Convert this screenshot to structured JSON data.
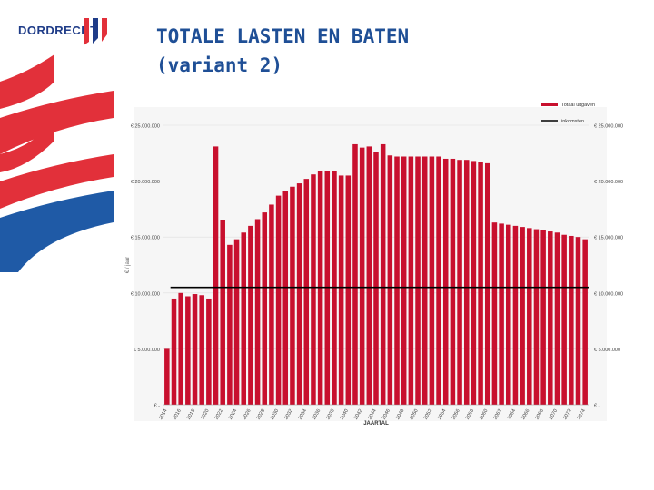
{
  "brand": {
    "name": "DORDRECHT",
    "primary_color": "#1f3c88",
    "accent_color": "#e2303a"
  },
  "slide": {
    "title_line1": "TOTALE LASTEN EN BATEN",
    "title_line2": "(variant 2)",
    "title_color": "#1f4f96"
  },
  "chart_data": {
    "type": "bar",
    "xlabel": "JAARTAL",
    "ylabel": "€ / jaar",
    "ylim": [
      0,
      25000000
    ],
    "y_ticks_left": [
      "€ 25.000.000",
      "€ 20.000.000",
      "€ 15.000.000",
      "€ 10.000.000",
      "€ 5.000.000",
      "€ -"
    ],
    "y_ticks_right": [
      "€ 25.000.000",
      "€ 20.000.000",
      "€ 15.000.000",
      "€ 10.000.000",
      "€ 5.000.000",
      "€ -"
    ],
    "x_ticks": [
      "2014",
      "2016",
      "2018",
      "2020",
      "2022",
      "2024",
      "2026",
      "2028",
      "2030",
      "2032",
      "2034",
      "2036",
      "2038",
      "2040",
      "2042",
      "2044",
      "2046",
      "2048",
      "2050",
      "2052",
      "2054",
      "2056",
      "2058",
      "2060",
      "2062",
      "2064",
      "2066",
      "2068",
      "2070",
      "2072",
      "2074"
    ],
    "legend": [
      {
        "name": "Totaal uitgaven",
        "color": "#c8102e"
      },
      {
        "name": "inkomsten",
        "color": "#000000"
      }
    ],
    "legend_position": "top-right",
    "grid": true,
    "series": [
      {
        "name": "Totaal uitgaven",
        "type": "bar",
        "color": "#c8102e",
        "years": [
          2014,
          2015,
          2016,
          2017,
          2018,
          2019,
          2020,
          2021,
          2022,
          2023,
          2024,
          2025,
          2026,
          2027,
          2028,
          2029,
          2030,
          2031,
          2032,
          2033,
          2034,
          2035,
          2036,
          2037,
          2038,
          2039,
          2040,
          2041,
          2042,
          2043,
          2044,
          2045,
          2046,
          2047,
          2048,
          2049,
          2050,
          2051,
          2052,
          2053,
          2054,
          2055,
          2056,
          2057,
          2058,
          2059,
          2060,
          2061,
          2062,
          2063,
          2064,
          2065,
          2066,
          2067,
          2068,
          2069,
          2070,
          2071,
          2072,
          2073,
          2074
        ],
        "values": [
          5000000,
          9500000,
          10000000,
          9700000,
          9900000,
          9800000,
          9500000,
          23100000,
          16500000,
          14300000,
          14800000,
          15400000,
          16000000,
          16600000,
          17200000,
          17900000,
          18700000,
          19100000,
          19500000,
          19800000,
          20200000,
          20600000,
          20900000,
          20900000,
          20900000,
          20500000,
          20500000,
          23300000,
          23000000,
          23100000,
          22600000,
          23300000,
          22300000,
          22200000,
          22200000,
          22200000,
          22200000,
          22200000,
          22200000,
          22200000,
          22000000,
          22000000,
          21900000,
          21900000,
          21800000,
          21700000,
          21600000,
          16300000,
          16200000,
          16100000,
          16000000,
          15900000,
          15800000,
          15700000,
          15600000,
          15500000,
          15400000,
          15200000,
          15100000,
          15000000,
          14800000
        ]
      },
      {
        "name": "inkomsten",
        "type": "line",
        "color": "#000000",
        "start_year": 2015,
        "end_year": 2074,
        "value": 10500000
      }
    ]
  }
}
